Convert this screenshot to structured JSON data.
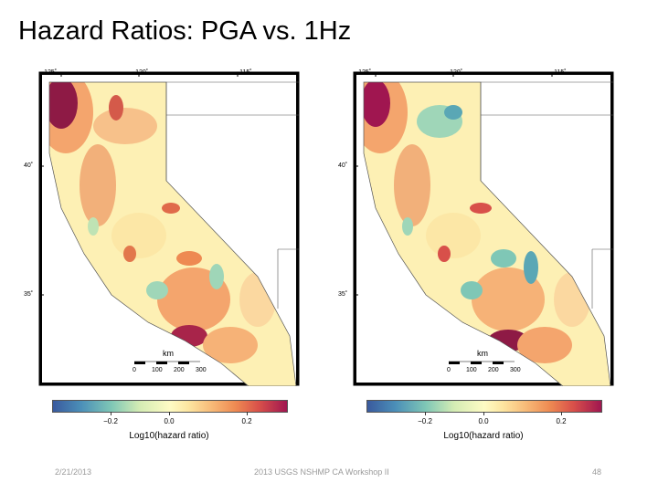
{
  "slide": {
    "title": "Hazard Ratios: PGA vs. 1Hz",
    "footer_date": "2/21/2013",
    "footer_center": "2013 USGS NSHMP CA Workshop II",
    "page_number": "48"
  },
  "maps": [
    {
      "id": "pga",
      "lon_ticks": [
        "−125˚",
        "−120˚",
        "−115˚"
      ],
      "lat_ticks": [
        "40˚",
        "35˚"
      ],
      "scale_unit": "km",
      "scale_ticks": [
        "0",
        "100",
        "200",
        "300"
      ]
    },
    {
      "id": "1hz",
      "lon_ticks": [
        "−125˚",
        "−120˚",
        "−115˚"
      ],
      "lat_ticks": [
        "40˚",
        "35˚"
      ],
      "scale_unit": "km",
      "scale_ticks": [
        "0",
        "100",
        "200",
        "300"
      ]
    }
  ],
  "colorbar": {
    "label": "Log10(hazard ratio)",
    "ticks": [
      "−0.2",
      "0.0",
      "0.2"
    ],
    "range": [
      -0.3,
      0.3
    ],
    "colors": [
      "#3a5a9e",
      "#7fc7b6",
      "#fefbc4",
      "#ee8a52",
      "#a01650"
    ]
  }
}
